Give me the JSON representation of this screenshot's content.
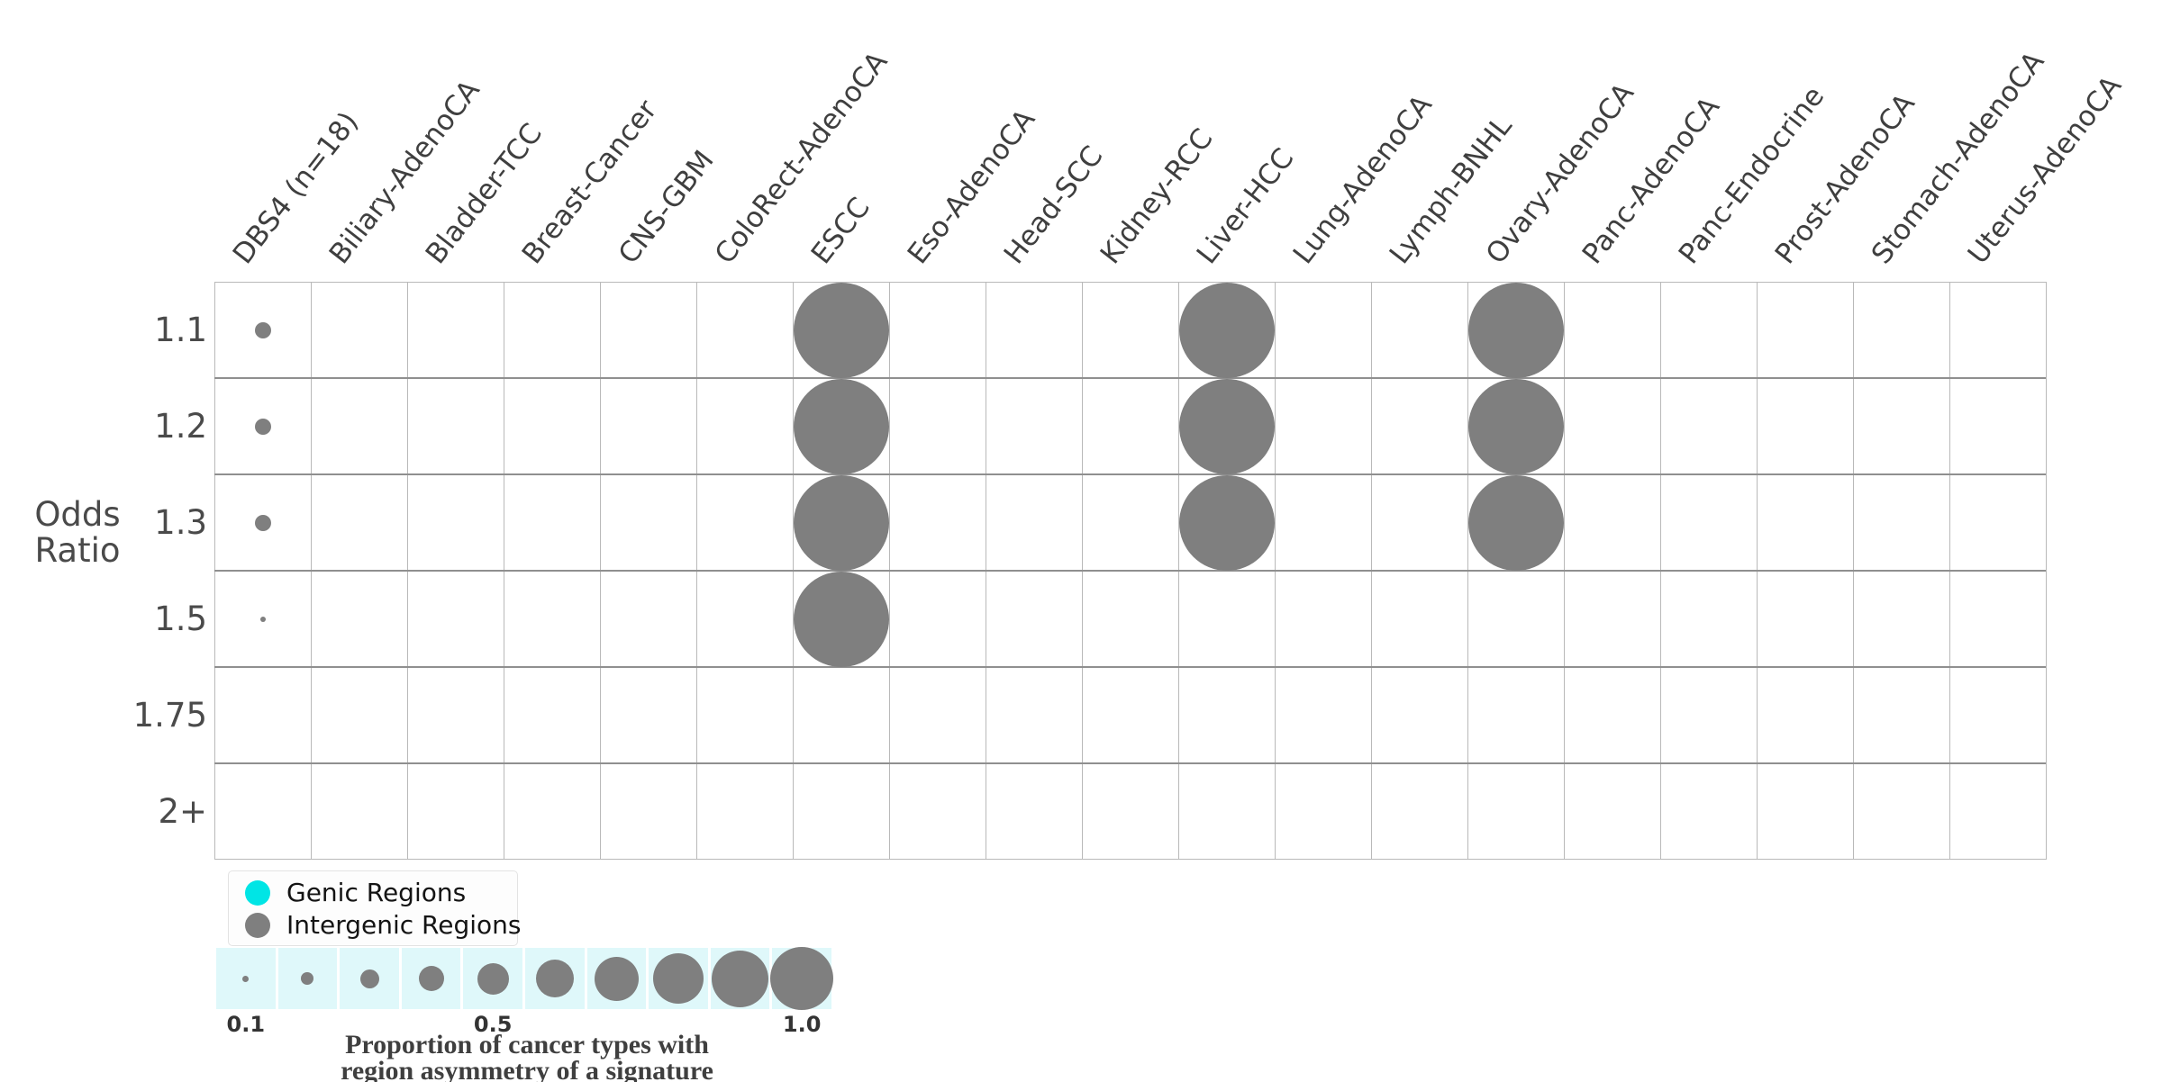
{
  "chart_data": {
    "type": "scatter",
    "subtype": "bubble-matrix",
    "signature": "DBS4",
    "title": "",
    "xlabel": "",
    "ylabel": "Odds Ratio",
    "ylabel_lines": [
      "Odds",
      "Ratio"
    ],
    "columns": [
      "DBS4 (n=18)",
      "Biliary-AdenoCA",
      "Bladder-TCC",
      "Breast-Cancer",
      "CNS-GBM",
      "ColoRect-AdenoCA",
      "ESCC",
      "Eso-AdenoCA",
      "Head-SCC",
      "Kidney-RCC",
      "Liver-HCC",
      "Lung-AdenoCA",
      "Lymph-BNHL",
      "Ovary-AdenoCA",
      "Panc-AdenoCA",
      "Panc-Endocrine",
      "Prost-AdenoCA",
      "Stomach-AdenoCA",
      "Uterus-AdenoCA"
    ],
    "rows": [
      "1.1",
      "1.2",
      "1.3",
      "1.5",
      "1.75",
      "2+"
    ],
    "grid_on": true,
    "legend_position": "bottom-left",
    "legend": [
      {
        "label": "Genic Regions",
        "color": "#00E5E5"
      },
      {
        "label": "Intergenic Regions",
        "color": "#7F7F7F"
      }
    ],
    "series": [
      {
        "name": "Genic Regions",
        "color": "#00E5E5",
        "points": []
      },
      {
        "name": "Intergenic Regions",
        "color": "#7F7F7F",
        "points": [
          {
            "column": "DBS4 (n=18)",
            "row": "1.1",
            "proportion": 0.17
          },
          {
            "column": "DBS4 (n=18)",
            "row": "1.2",
            "proportion": 0.17
          },
          {
            "column": "DBS4 (n=18)",
            "row": "1.3",
            "proportion": 0.17
          },
          {
            "column": "DBS4 (n=18)",
            "row": "1.5",
            "proportion": 0.06
          },
          {
            "column": "ESCC",
            "row": "1.1",
            "proportion": 1.0
          },
          {
            "column": "ESCC",
            "row": "1.2",
            "proportion": 1.0
          },
          {
            "column": "ESCC",
            "row": "1.3",
            "proportion": 1.0
          },
          {
            "column": "ESCC",
            "row": "1.5",
            "proportion": 1.0
          },
          {
            "column": "Liver-HCC",
            "row": "1.1",
            "proportion": 1.0
          },
          {
            "column": "Liver-HCC",
            "row": "1.2",
            "proportion": 1.0
          },
          {
            "column": "Liver-HCC",
            "row": "1.3",
            "proportion": 1.0
          },
          {
            "column": "Ovary-AdenoCA",
            "row": "1.1",
            "proportion": 1.0
          },
          {
            "column": "Ovary-AdenoCA",
            "row": "1.2",
            "proportion": 1.0
          },
          {
            "column": "Ovary-AdenoCA",
            "row": "1.3",
            "proportion": 1.0
          }
        ]
      }
    ],
    "size_legend": {
      "values": [
        0.1,
        0.2,
        0.3,
        0.4,
        0.5,
        0.6,
        0.7,
        0.8,
        0.9,
        1.0
      ],
      "tick_labels": [
        "0.1",
        "0.5",
        "1.0"
      ],
      "tick_cells": [
        0,
        4,
        9
      ],
      "caption_lines": [
        "Proportion of cancer types with",
        "region asymmetry of a signature"
      ],
      "strip_color": "#DFF8FA",
      "bubble_color": "#7F7F7F"
    },
    "colors": {
      "bubble_gray": "#7F7F7F",
      "genic_cyan": "#00E5E5",
      "grid_line_vertical": "#B9B9B9",
      "grid_line_horizontal": "#8F8F8F",
      "axis_text": "#4A4A4A"
    }
  }
}
